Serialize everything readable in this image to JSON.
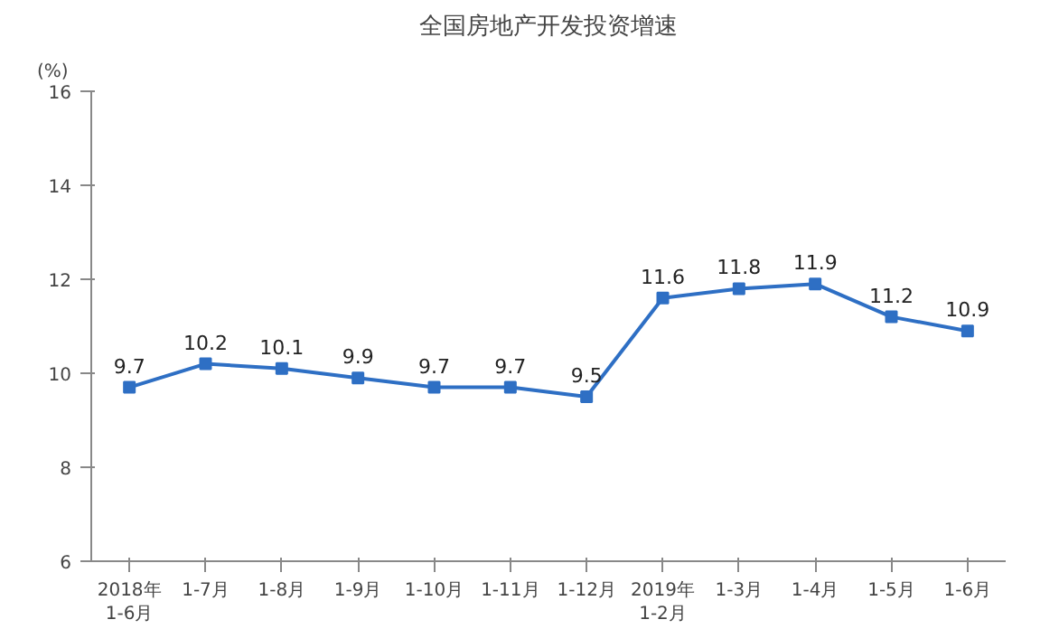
{
  "chart_data": {
    "type": "line",
    "title": "全国房地产开发投资增速",
    "ylabel": "(%)",
    "categories": [
      "2018年\n1-6月",
      "1-7月",
      "1-8月",
      "1-9月",
      "1-10月",
      "1-11月",
      "1-12月",
      "2019年\n1-2月",
      "1-3月",
      "1-4月",
      "1-5月",
      "1-6月"
    ],
    "series": [
      {
        "color": "#2e6fc4",
        "values": [
          9.7,
          10.2,
          10.1,
          9.9,
          9.7,
          9.7,
          9.5,
          11.6,
          11.8,
          11.9,
          11.2,
          10.9
        ]
      }
    ],
    "ylim": [
      6,
      16
    ],
    "yticks": [
      6,
      8,
      10,
      12,
      14,
      16
    ],
    "data_labels": true,
    "marker": "square",
    "grid": false
  }
}
